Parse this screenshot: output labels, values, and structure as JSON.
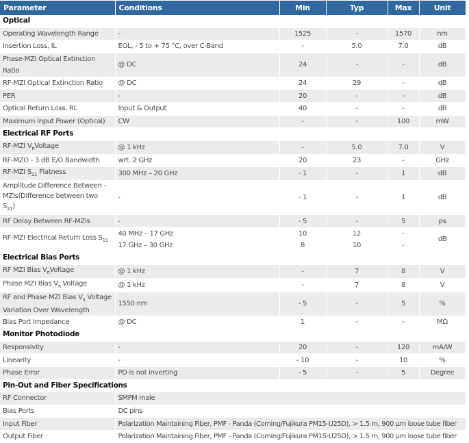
{
  "header": {
    "columns": [
      "Parameter",
      "Conditions",
      "Min",
      "Typ",
      "Max",
      "Unit"
    ]
  },
  "sections": [
    {
      "title": "Optical",
      "rows": [
        [
          "Operating Wavelength Range",
          "-",
          "1525",
          "-",
          "1570",
          "nm"
        ],
        [
          "Insertion Loss, IL",
          "EOL, - 5 to + 75 °C, over C-Band",
          "-",
          "5.0",
          "7.0",
          "dB"
        ],
        [
          "Phase-MZI Optical Extinction Ratio",
          "@ DC",
          "24",
          "-",
          "-",
          "dB"
        ],
        [
          "RF-MZI Optical Extinction Ratio",
          "@ DC",
          "24",
          "29",
          "-",
          "dB"
        ],
        [
          "PER",
          "-",
          "20",
          "-",
          "-",
          "dB"
        ],
        [
          "Optical Return Loss, RL",
          "Input & Output",
          "40",
          "-",
          "-",
          "dB"
        ],
        [
          "Maximum Input Power (Optical)",
          "CW",
          "-",
          "-",
          "100",
          "mW"
        ]
      ]
    },
    {
      "title": "Electrical RF Ports",
      "rows": [
        [
          {
            "parts": [
              "RF-MZI V",
              {
                "sub": "π"
              },
              "Voltage"
            ]
          },
          "@ 1 kHz",
          "-",
          "5.0",
          "7.0",
          "V"
        ],
        [
          "RF-MZO - 3 dB E/O Bandwidth",
          "wrt. 2 GHz",
          "20",
          "23",
          "-",
          "GHz"
        ],
        [
          {
            "parts": [
              "RF-MZI S",
              {
                "sub": "21"
              },
              " Flatness"
            ]
          },
          "300 MHz – 20 GHz",
          "- 1",
          "-",
          "1",
          "dB"
        ],
        [
          {
            "parts": [
              "Amplitude Difference Between - MZIs(Difference between two S",
              {
                "sub": "21"
              },
              ")"
            ]
          },
          "-",
          "- 1",
          "-",
          "1",
          "dB"
        ],
        [
          "RF Delay Between RF-MZIs",
          "-",
          "- 5",
          "-",
          "5",
          "ps"
        ],
        [
          {
            "parts": [
              "RF-MZI Electrical Return Loss S",
              {
                "sub": "11"
              }
            ]
          },
          {
            "lines": [
              "40 MHz – 17 GHz",
              "17 GHz – 30 GHz"
            ]
          },
          {
            "lines": [
              "10",
              "8"
            ]
          },
          {
            "lines": [
              "12",
              "10"
            ]
          },
          {
            "lines": [
              "-",
              "-"
            ]
          },
          "dB"
        ]
      ]
    },
    {
      "title": "Electrical Bias Ports",
      "rows": [
        [
          {
            "parts": [
              "RF MZI Bias V",
              {
                "sub": "π"
              },
              "Voltage"
            ]
          },
          "@ 1 kHz",
          "-",
          "7",
          "8",
          "V"
        ],
        [
          {
            "parts": [
              "Phase MZI Bias V",
              {
                "sub": "π"
              },
              " Voltage"
            ]
          },
          "@ 1 kHz",
          "-",
          "7",
          "8",
          "V"
        ],
        [
          {
            "parts": [
              "RF and Phase MZI Bias V",
              {
                "sub": "π"
              },
              " Voltage Variation Over Wavelength"
            ]
          },
          "1550 nm",
          "- 5",
          "-",
          "5",
          "%"
        ],
        [
          "Bias Port Impedance",
          "@ DC",
          "1",
          "-",
          "-",
          "MΩ"
        ]
      ]
    },
    {
      "title": "Monitor Photodiode",
      "rows": [
        [
          "Responsivity",
          "-",
          "20",
          "-",
          "120",
          "mA/W"
        ],
        [
          "Linearity",
          "-",
          "- 10",
          "-",
          "10",
          "%"
        ],
        [
          "Phase Error",
          "PD is not inverting",
          "- 5",
          "-",
          "5",
          "Degree"
        ]
      ]
    },
    {
      "title": "Pin-Out and Fiber Specifications",
      "rows": [
        [
          "RF Connector",
          "SMPM male"
        ],
        [
          "Bias Ports",
          "DC pins"
        ],
        [
          "Input Fiber",
          "Polarization Maintaining Fiber, PMF - Panda (Corning/Fujikura PM15-U25D), > 1.5 m, 900 µm loose tube fiber"
        ],
        [
          "Output Fiber",
          "Polarization Maintaining Fiber, PMF - Panda (Corning/Fujikura PM15-U25D), > 1.5 m, 900 µm loose tube fiber"
        ]
      ]
    }
  ]
}
